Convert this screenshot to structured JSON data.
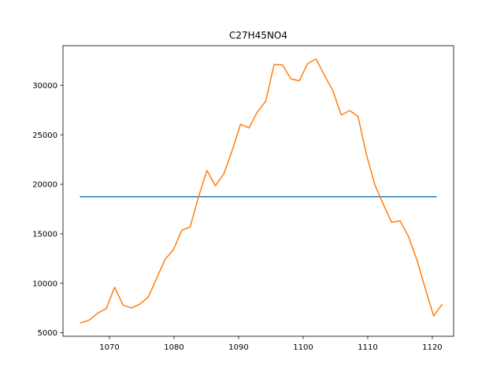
{
  "chart_data": {
    "type": "line",
    "title": "C27H45NO4",
    "xlabel": "",
    "ylabel": "",
    "xlim": [
      1062.8,
      1123.3
    ],
    "ylim": [
      4650,
      34000
    ],
    "x_ticks": [
      1070,
      1080,
      1090,
      1100,
      1110,
      1120
    ],
    "y_ticks": [
      5000,
      10000,
      15000,
      20000,
      25000,
      30000
    ],
    "grid": false,
    "legend": "none",
    "series": [
      {
        "color": "#1f77b4",
        "x": [
          1065.5,
          1120.6
        ],
        "y": [
          18750,
          18750
        ]
      },
      {
        "color": "#ff7f0e",
        "x": [
          1065.5,
          1066.9,
          1068.2,
          1069.5,
          1070.8,
          1072.1,
          1073.4,
          1074.7,
          1076.0,
          1077.3,
          1078.6,
          1079.9,
          1081.2,
          1082.5,
          1083.8,
          1085.1,
          1086.4,
          1087.7,
          1089.0,
          1090.3,
          1091.6,
          1092.9,
          1094.2,
          1095.5,
          1096.8,
          1098.1,
          1099.4,
          1100.7,
          1102.0,
          1103.3,
          1104.6,
          1105.9,
          1107.2,
          1108.5,
          1109.8,
          1111.1,
          1112.4,
          1113.7,
          1115.0,
          1116.3,
          1117.6,
          1118.9,
          1120.2,
          1121.5
        ],
        "y": [
          6000,
          6300,
          7000,
          7450,
          9600,
          7800,
          7500,
          7900,
          8600,
          10500,
          12400,
          13400,
          15350,
          15700,
          18750,
          21400,
          19850,
          21050,
          23400,
          26050,
          25700,
          27300,
          28400,
          32100,
          32050,
          30650,
          30450,
          32200,
          32650,
          31000,
          29450,
          27000,
          27450,
          26850,
          23000,
          19950,
          18000,
          16150,
          16300,
          14750,
          12400,
          9500,
          6700,
          7850
        ]
      }
    ]
  }
}
